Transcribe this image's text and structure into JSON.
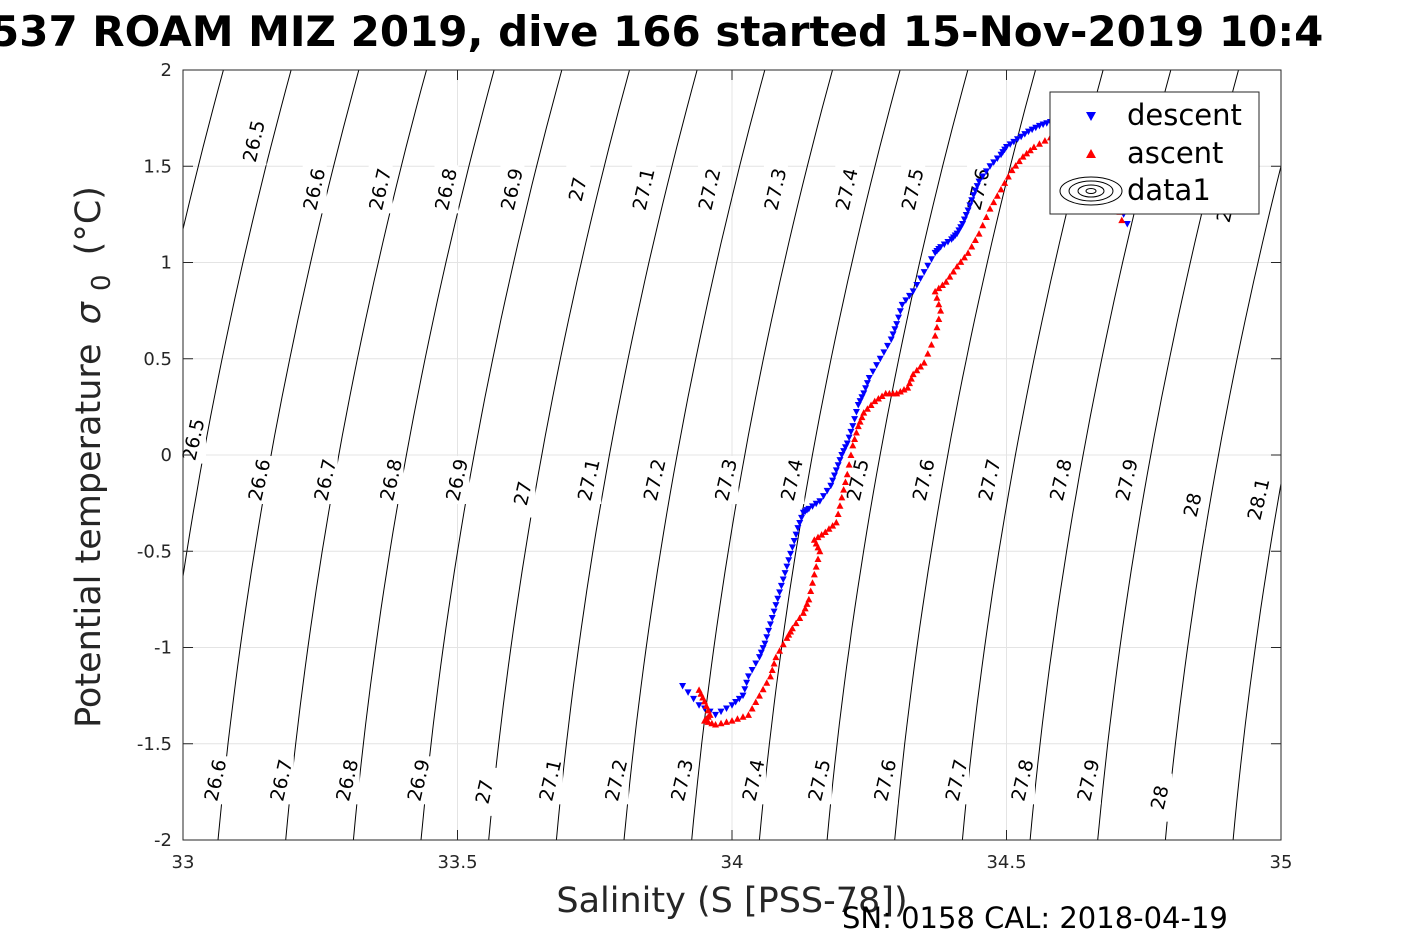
{
  "chart_data": {
    "type": "scatter",
    "title": "537 ROAM MIZ 2019, dive 166 started 15-Nov-2019 10:4",
    "xlabel": "Salinity (S [PSS-78])",
    "ylabel": "Potential temperature",
    "ylabel_symbol": "σ",
    "ylabel_subscript": "0",
    "ylabel_unit": "(°C)",
    "xlim": [
      33,
      35
    ],
    "ylim": [
      -2,
      2
    ],
    "x_ticks": [
      33,
      33.5,
      34,
      34.5,
      35
    ],
    "x_tick_labels": [
      "33",
      "33.5",
      "34",
      "34.5",
      "35"
    ],
    "y_ticks": [
      2,
      1.5,
      1,
      0.5,
      0,
      -0.5,
      -1,
      -1.5,
      -2
    ],
    "y_tick_labels": [
      "2",
      "1.5",
      "1",
      "0.5",
      "0",
      "-0.5",
      "-1",
      "-1.5",
      "-2"
    ],
    "grid": true,
    "legend_position": "top-right",
    "legend": [
      "descent",
      "ascent",
      "data1"
    ],
    "footer": "SN: 0158  CAL: 2018-04-19",
    "contours": {
      "levels": [
        26.5,
        26.6,
        26.7,
        26.8,
        26.9,
        27.0,
        27.1,
        27.2,
        27.3,
        27.4,
        27.5,
        27.6,
        27.7,
        27.8,
        27.9,
        28.0,
        28.1
      ],
      "labels": [
        {
          "text": "26.5",
          "s": 33.13,
          "t": 1.63
        },
        {
          "text": "26.6",
          "s": 33.24,
          "t": 1.38
        },
        {
          "text": "26.7",
          "s": 33.36,
          "t": 1.38
        },
        {
          "text": "26.8",
          "s": 33.48,
          "t": 1.38
        },
        {
          "text": "26.9",
          "s": 33.6,
          "t": 1.38
        },
        {
          "text": "27",
          "s": 33.72,
          "t": 1.38
        },
        {
          "text": "27.1",
          "s": 33.84,
          "t": 1.38
        },
        {
          "text": "27.2",
          "s": 33.96,
          "t": 1.38
        },
        {
          "text": "27.3",
          "s": 34.08,
          "t": 1.38
        },
        {
          "text": "27.4",
          "s": 34.21,
          "t": 1.38
        },
        {
          "text": "27.5",
          "s": 34.33,
          "t": 1.38
        },
        {
          "text": "27.6",
          "s": 34.45,
          "t": 1.38
        },
        {
          "text": "28",
          "s": 34.9,
          "t": 1.27
        },
        {
          "text": "26.5",
          "s": 33.02,
          "t": 0.08
        },
        {
          "text": "26.6",
          "s": 33.14,
          "t": -0.13
        },
        {
          "text": "26.7",
          "s": 33.26,
          "t": -0.13
        },
        {
          "text": "26.8",
          "s": 33.38,
          "t": -0.13
        },
        {
          "text": "26.9",
          "s": 33.5,
          "t": -0.13
        },
        {
          "text": "27",
          "s": 33.62,
          "t": -0.2
        },
        {
          "text": "27.1",
          "s": 33.74,
          "t": -0.13
        },
        {
          "text": "27.2",
          "s": 33.86,
          "t": -0.13
        },
        {
          "text": "27.3",
          "s": 33.99,
          "t": -0.13
        },
        {
          "text": "27.4",
          "s": 34.11,
          "t": -0.13
        },
        {
          "text": "27.5",
          "s": 34.23,
          "t": -0.13
        },
        {
          "text": "27.6",
          "s": 34.35,
          "t": -0.13
        },
        {
          "text": "27.7",
          "s": 34.47,
          "t": -0.13
        },
        {
          "text": "27.8",
          "s": 34.6,
          "t": -0.13
        },
        {
          "text": "27.9",
          "s": 34.72,
          "t": -0.13
        },
        {
          "text": "28",
          "s": 34.84,
          "t": -0.26
        },
        {
          "text": "28.1",
          "s": 34.96,
          "t": -0.23
        },
        {
          "text": "26.6",
          "s": 33.06,
          "t": -1.69
        },
        {
          "text": "26.7",
          "s": 33.18,
          "t": -1.69
        },
        {
          "text": "26.8",
          "s": 33.3,
          "t": -1.69
        },
        {
          "text": "26.9",
          "s": 33.43,
          "t": -1.69
        },
        {
          "text": "27",
          "s": 33.55,
          "t": -1.75
        },
        {
          "text": "27.1",
          "s": 33.67,
          "t": -1.69
        },
        {
          "text": "27.2",
          "s": 33.79,
          "t": -1.69
        },
        {
          "text": "27.3",
          "s": 33.91,
          "t": -1.69
        },
        {
          "text": "27.4",
          "s": 34.04,
          "t": -1.69
        },
        {
          "text": "27.5",
          "s": 34.16,
          "t": -1.69
        },
        {
          "text": "27.6",
          "s": 34.28,
          "t": -1.69
        },
        {
          "text": "27.7",
          "s": 34.41,
          "t": -1.69
        },
        {
          "text": "27.8",
          "s": 34.53,
          "t": -1.69
        },
        {
          "text": "27.9",
          "s": 34.65,
          "t": -1.69
        },
        {
          "text": "28",
          "s": 34.78,
          "t": -1.78
        }
      ]
    },
    "series": [
      {
        "name": "descent",
        "marker": "triangle-down",
        "color": "#0000ff",
        "x": [
          33.91,
          33.94,
          33.97,
          34.0,
          34.02,
          34.03,
          34.05,
          34.06,
          34.07,
          34.08,
          34.09,
          34.1,
          34.11,
          34.12,
          34.13,
          34.14,
          34.16,
          34.18,
          34.19,
          34.2,
          34.21,
          34.22,
          34.23,
          34.24,
          34.25,
          34.27,
          34.29,
          34.3,
          34.31,
          34.33,
          34.35,
          34.37,
          34.38,
          34.4,
          34.41,
          34.42,
          34.43,
          34.44,
          34.45,
          34.47,
          34.49,
          34.5,
          34.52,
          34.54,
          34.56,
          34.58,
          34.6,
          34.64,
          34.68,
          34.7,
          34.72
        ],
        "y": [
          -1.2,
          -1.3,
          -1.35,
          -1.3,
          -1.25,
          -1.15,
          -1.05,
          -0.98,
          -0.88,
          -0.78,
          -0.68,
          -0.58,
          -0.48,
          -0.38,
          -0.3,
          -0.28,
          -0.24,
          -0.16,
          -0.08,
          0.0,
          0.06,
          0.15,
          0.26,
          0.32,
          0.4,
          0.5,
          0.6,
          0.68,
          0.78,
          0.85,
          0.95,
          1.05,
          1.08,
          1.12,
          1.15,
          1.2,
          1.27,
          1.35,
          1.42,
          1.5,
          1.56,
          1.6,
          1.64,
          1.68,
          1.71,
          1.73,
          1.72,
          1.65,
          1.5,
          1.35,
          1.2
        ]
      },
      {
        "name": "ascent",
        "marker": "triangle-up",
        "color": "#ff0000",
        "x": [
          33.94,
          33.95,
          33.96,
          33.95,
          33.97,
          34.0,
          34.03,
          34.05,
          34.07,
          34.08,
          34.1,
          34.11,
          34.13,
          34.14,
          34.15,
          34.16,
          34.15,
          34.17,
          34.19,
          34.2,
          34.21,
          34.22,
          34.23,
          34.24,
          34.26,
          34.28,
          34.3,
          34.32,
          34.33,
          34.35,
          34.37,
          34.38,
          34.37,
          34.39,
          34.41,
          34.43,
          34.45,
          34.47,
          34.49,
          34.51,
          34.53,
          34.55,
          34.58,
          34.61,
          34.65,
          34.68,
          34.7,
          34.71
        ],
        "y": [
          -1.22,
          -1.28,
          -1.35,
          -1.38,
          -1.4,
          -1.38,
          -1.35,
          -1.25,
          -1.15,
          -1.05,
          -0.95,
          -0.9,
          -0.82,
          -0.75,
          -0.62,
          -0.5,
          -0.44,
          -0.4,
          -0.35,
          -0.22,
          -0.1,
          0.05,
          0.15,
          0.22,
          0.28,
          0.32,
          0.32,
          0.35,
          0.42,
          0.48,
          0.62,
          0.75,
          0.85,
          0.9,
          0.98,
          1.05,
          1.15,
          1.28,
          1.38,
          1.48,
          1.55,
          1.6,
          1.65,
          1.68,
          1.64,
          1.5,
          1.35,
          1.22
        ]
      }
    ]
  }
}
